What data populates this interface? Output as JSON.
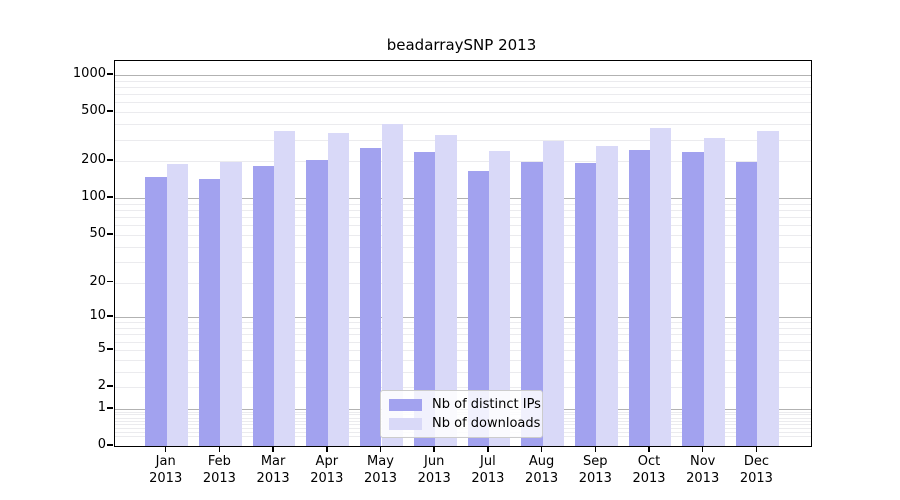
{
  "title": "beadarraySNP 2013",
  "chart_data": {
    "type": "bar",
    "title": "beadarraySNP 2013",
    "categories": [
      "Jan",
      "Feb",
      "Mar",
      "Apr",
      "May",
      "Jun",
      "Jul",
      "Aug",
      "Sep",
      "Oct",
      "Nov",
      "Dec"
    ],
    "year_label": "2013",
    "series": [
      {
        "name": "Nb of distinct IPs",
        "color": "#a2a2ef",
        "values": [
          149,
          143,
          182,
          206,
          257,
          239,
          168,
          198,
          195,
          246,
          238,
          196
        ]
      },
      {
        "name": "Nb of downloads",
        "color": "#d9d9f8",
        "values": [
          191,
          197,
          353,
          342,
          404,
          329,
          242,
          292,
          267,
          371,
          307,
          354
        ]
      }
    ],
    "xlabel": "",
    "ylabel": "",
    "y_scale": "log10(1+value)",
    "y_ticks": [
      0,
      1,
      2,
      5,
      10,
      20,
      50,
      100,
      200,
      500,
      1000
    ],
    "ylim": [
      0,
      1300
    ],
    "grid": true,
    "grid_major_color": "#b2b2b2",
    "grid_minor_color": "#ebebee",
    "legend_position": "lower center"
  }
}
